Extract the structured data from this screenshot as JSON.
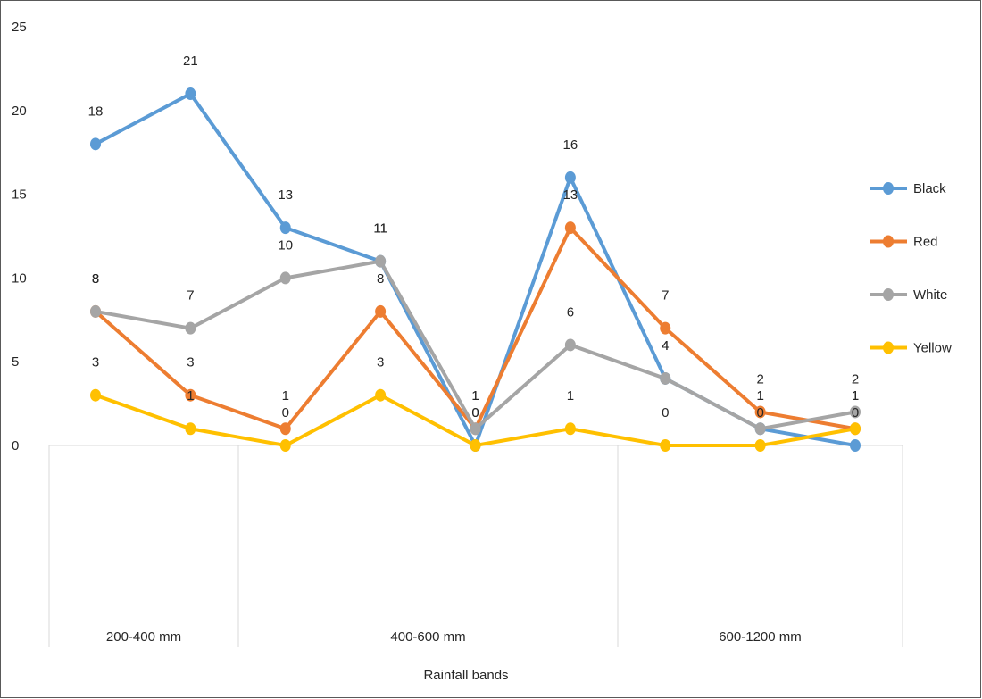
{
  "chart_data": {
    "type": "line",
    "xlabel": "Rainfall bands",
    "ylabel": "",
    "ylim": [
      0,
      25
    ],
    "yticks": [
      0,
      5,
      10,
      15,
      20,
      25
    ],
    "group_labels": [
      "200-400 mm",
      "400-600 mm",
      "600-1200 mm"
    ],
    "group_spans": [
      [
        0,
        2
      ],
      [
        2,
        6
      ],
      [
        6,
        9
      ]
    ],
    "n_points": 9,
    "grid": false,
    "legend_position": "right",
    "series": [
      {
        "name": "Black",
        "color": "#5b9bd5",
        "values": [
          18,
          21,
          13,
          11,
          0,
          16,
          4,
          1,
          0
        ]
      },
      {
        "name": "Red",
        "color": "#ed7d31",
        "values": [
          8,
          3,
          1,
          8,
          1,
          13,
          7,
          2,
          1
        ]
      },
      {
        "name": "White",
        "color": "#a5a5a5",
        "values": [
          8,
          7,
          10,
          11,
          1,
          6,
          4,
          1,
          2
        ]
      },
      {
        "name": "Yellow",
        "color": "#ffc000",
        "values": [
          3,
          1,
          0,
          3,
          0,
          1,
          0,
          0,
          1
        ]
      }
    ]
  }
}
